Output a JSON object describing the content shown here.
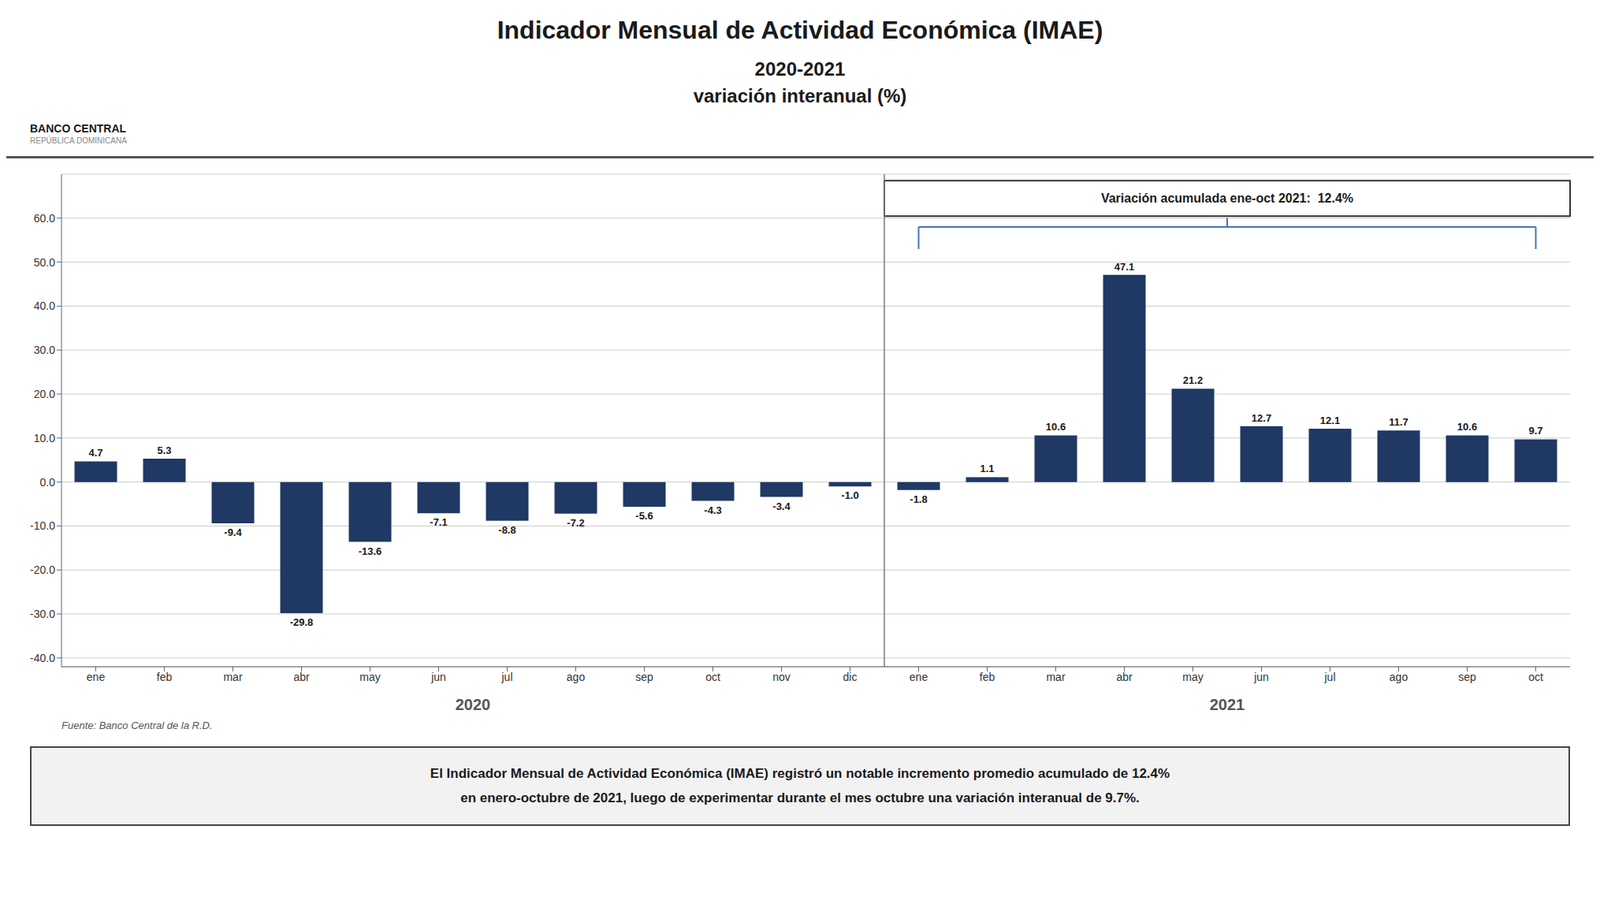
{
  "chart_data": {
    "type": "bar",
    "title": "Indicador Mensual de Actividad Económica (IMAE)",
    "subtitle": "2020-2021\nvariación interanual (%)",
    "categories": [
      "ene",
      "feb",
      "mar",
      "abr",
      "may",
      "jun",
      "jul",
      "ago",
      "sep",
      "oct",
      "nov",
      "dic",
      "ene",
      "feb",
      "mar",
      "abr",
      "may",
      "jun",
      "jul",
      "ago",
      "sep",
      "oct"
    ],
    "values": [
      4.7,
      5.3,
      -9.4,
      -29.8,
      -13.6,
      -7.1,
      -8.8,
      -7.2,
      -5.6,
      -4.3,
      -3.4,
      -1.0,
      -1.8,
      1.1,
      10.6,
      47.1,
      21.2,
      12.7,
      12.1,
      11.7,
      10.6,
      9.7
    ],
    "value_labels": [
      "4.7",
      "5.3",
      "-9.4",
      "-29.8",
      "-13.6",
      "-7.1",
      "-8.8",
      "-7.2",
      "-5.6",
      "-4.3",
      "-3.4",
      "-1.0",
      "-1.8",
      "1.1",
      "10.6",
      "47.1",
      "21.2",
      "12.7",
      "12.1",
      "11.7",
      "10.6",
      "9.7"
    ],
    "color": "#1f3864",
    "ylim": [
      -42,
      70
    ],
    "yticks": [
      {
        "value": -40,
        "label": "-40.0"
      },
      {
        "value": -30,
        "label": "-30.0"
      },
      {
        "value": -20,
        "label": "-20.0"
      },
      {
        "value": -10,
        "label": "-10.0"
      },
      {
        "value": 0,
        "label": "0.0"
      },
      {
        "value": 10,
        "label": "10.0"
      },
      {
        "value": 20,
        "label": "20.0"
      },
      {
        "value": 30,
        "label": "30.0"
      },
      {
        "value": 40,
        "label": "40.0"
      },
      {
        "value": 50,
        "label": "50.0"
      },
      {
        "value": 60,
        "label": "60.0"
      }
    ],
    "grid": true,
    "data_labels": true,
    "annotations": [
      "BANCO CENTRAL",
      "REPÚBLICA DOMINICANA",
      "2020",
      "2021",
      "Variación acumulada ene-oct 2021:  12.4%",
      "Fuente: Banco Central de la R.D.",
      "El Indicador Mensual de Actividad Económica (IMAE) registró un notable incremento promedio acumulado de 12.4%\nen enero-octubre de 2021, luego de experimentar durante el mes octubre una variación interanual de 9.7%."
    ]
  }
}
